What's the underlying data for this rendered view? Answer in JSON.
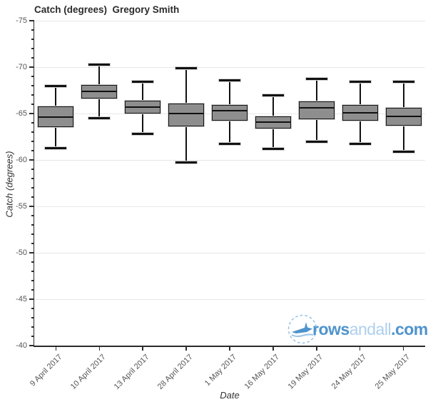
{
  "header": {
    "title": "Catch (degrees)  Gregory Smith"
  },
  "axes": {
    "y_label": "Catch (degrees)",
    "x_label": "Date"
  },
  "logo": {
    "text_primary": "rows",
    "text_secondary": "andall",
    "text_suffix": ".com",
    "icon": "rowing-boat-icon",
    "color_primary": "#4f93cc",
    "color_secondary": "#aecfee",
    "icon_stroke": "#9cc4e8"
  },
  "chart_data": {
    "type": "box",
    "title": "Catch (degrees)  Gregory Smith",
    "xlabel": "Date",
    "ylabel": "Catch (degrees)",
    "y_axis_inverted": true,
    "ylim_top": -75,
    "ylim_bottom": -40,
    "y_ticks": [
      -75,
      -70,
      -65,
      -60,
      -55,
      -50,
      -45,
      -40
    ],
    "y_tick_labels": [
      "-75",
      "-70",
      "-65",
      "-60",
      "-55",
      "-50",
      "-45",
      "-40"
    ],
    "y_minor_step": 1,
    "grid": "horizontal-major-light",
    "legend": "none",
    "box_fill": "#8e8e8e",
    "box_edge": "#161616",
    "categories": [
      "9 April 2017",
      "10 April 2017",
      "13 April 2017",
      "28 April 2017",
      "1 May 2017",
      "16 May 2017",
      "19 May 2017",
      "24 May 2017",
      "25 May 2017"
    ],
    "boxes": [
      {
        "whisker_low": -68.0,
        "q1": -65.8,
        "median": -64.6,
        "q3": -63.5,
        "whisker_high": -61.3
      },
      {
        "whisker_low": -70.3,
        "q1": -68.1,
        "median": -67.4,
        "q3": -66.6,
        "whisker_high": -64.5
      },
      {
        "whisker_low": -68.4,
        "q1": -66.4,
        "median": -65.7,
        "q3": -65.0,
        "whisker_high": -62.8
      },
      {
        "whisker_low": -69.9,
        "q1": -66.1,
        "median": -65.0,
        "q3": -63.6,
        "whisker_high": -59.7
      },
      {
        "whisker_low": -68.6,
        "q1": -65.9,
        "median": -65.3,
        "q3": -64.2,
        "whisker_high": -61.7
      },
      {
        "whisker_low": -67.0,
        "q1": -64.7,
        "median": -64.1,
        "q3": -63.4,
        "whisker_high": -61.2
      },
      {
        "whisker_low": -68.7,
        "q1": -66.3,
        "median": -65.6,
        "q3": -64.4,
        "whisker_high": -62.0
      },
      {
        "whisker_low": -68.4,
        "q1": -65.9,
        "median": -65.1,
        "q3": -64.2,
        "whisker_high": -61.7
      },
      {
        "whisker_low": -68.4,
        "q1": -65.6,
        "median": -64.7,
        "q3": -63.7,
        "whisker_high": -60.9
      }
    ]
  }
}
